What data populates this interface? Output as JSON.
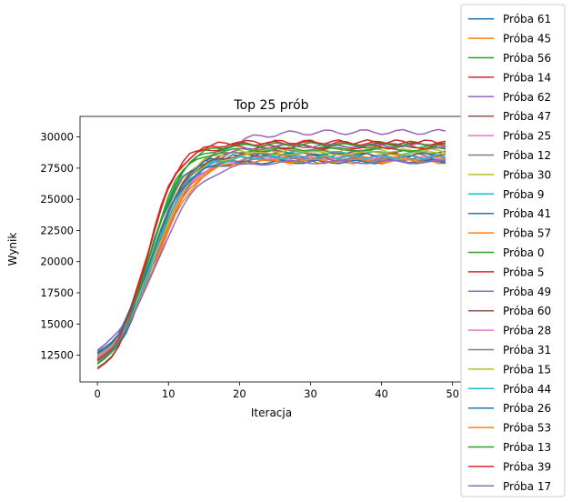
{
  "chart_data": {
    "type": "line",
    "title": "Top 25 prób",
    "xlabel": "Iteracja",
    "ylabel": "Wynik",
    "xlim": [
      -2.45,
      51.45
    ],
    "ylim": [
      10350,
      31650
    ],
    "xticks": [
      0,
      10,
      20,
      30,
      40,
      50
    ],
    "yticks": [
      12500,
      15000,
      17500,
      20000,
      22500,
      25000,
      27500,
      30000
    ],
    "grid": false,
    "legend_position": "right-outside",
    "series": [
      {
        "name": "Próba 61",
        "color": "#1f77b4",
        "start": 11800,
        "final": 28100,
        "k": 0.4,
        "x0": 7.5,
        "amp": 150,
        "freq": 1.1,
        "phase": 0.3
      },
      {
        "name": "Próba 45",
        "color": "#ff7f0e",
        "start": 12400,
        "final": 28000,
        "k": 0.38,
        "x0": 7.8,
        "amp": 150,
        "freq": 1.5,
        "phase": 1.2
      },
      {
        "name": "Próba 56",
        "color": "#2ca02c",
        "start": 12100,
        "final": 29300,
        "k": 0.42,
        "x0": 7.3,
        "amp": 180,
        "freq": 0.9,
        "phase": 2.0
      },
      {
        "name": "Próba 14",
        "color": "#d62728",
        "start": 12300,
        "final": 29500,
        "k": 0.45,
        "x0": 7.0,
        "amp": 160,
        "freq": 1.3,
        "phase": 0.7
      },
      {
        "name": "Próba 62",
        "color": "#9467bd",
        "start": 12800,
        "final": 30400,
        "k": 0.28,
        "x0": 8.5,
        "amp": 200,
        "freq": 1.2,
        "phase": 0.5
      },
      {
        "name": "Próba 47",
        "color": "#8c564b",
        "start": 12000,
        "final": 28800,
        "k": 0.4,
        "x0": 7.6,
        "amp": 140,
        "freq": 1.0,
        "phase": 1.8
      },
      {
        "name": "Próba 25",
        "color": "#e377c2",
        "start": 12500,
        "final": 28400,
        "k": 0.36,
        "x0": 7.9,
        "amp": 150,
        "freq": 1.4,
        "phase": 2.6
      },
      {
        "name": "Próba 12",
        "color": "#7f7f7f",
        "start": 12200,
        "final": 29000,
        "k": 0.39,
        "x0": 7.7,
        "amp": 130,
        "freq": 0.8,
        "phase": 0.9
      },
      {
        "name": "Próba 30",
        "color": "#bcbd22",
        "start": 11900,
        "final": 28900,
        "k": 0.41,
        "x0": 7.4,
        "amp": 150,
        "freq": 1.6,
        "phase": 1.5
      },
      {
        "name": "Próba 9",
        "color": "#17becf",
        "start": 12600,
        "final": 28700,
        "k": 0.37,
        "x0": 8.0,
        "amp": 140,
        "freq": 1.1,
        "phase": 2.3
      },
      {
        "name": "Próba 41",
        "color": "#1f77b4",
        "start": 12700,
        "final": 28500,
        "k": 0.43,
        "x0": 7.2,
        "amp": 200,
        "freq": 1.7,
        "phase": 0.1
      },
      {
        "name": "Próba 57",
        "color": "#ff7f0e",
        "start": 12300,
        "final": 28300,
        "k": 0.35,
        "x0": 8.2,
        "amp": 140,
        "freq": 1.2,
        "phase": 1.0
      },
      {
        "name": "Próba 0",
        "color": "#2ca02c",
        "start": 11500,
        "final": 29000,
        "k": 0.44,
        "x0": 7.1,
        "amp": 150,
        "freq": 0.9,
        "phase": 2.8
      },
      {
        "name": "Próba 5",
        "color": "#d62728",
        "start": 11400,
        "final": 29200,
        "k": 0.48,
        "x0": 6.8,
        "amp": 160,
        "freq": 1.3,
        "phase": 1.6
      },
      {
        "name": "Próba 49",
        "color": "#9467bd",
        "start": 12900,
        "final": 29300,
        "k": 0.32,
        "x0": 8.3,
        "amp": 150,
        "freq": 1.0,
        "phase": 0.4
      },
      {
        "name": "Próba 60",
        "color": "#8c564b",
        "start": 12100,
        "final": 28600,
        "k": 0.4,
        "x0": 7.5,
        "amp": 130,
        "freq": 1.5,
        "phase": 2.1
      },
      {
        "name": "Próba 28",
        "color": "#e377c2",
        "start": 12400,
        "final": 28300,
        "k": 0.38,
        "x0": 7.8,
        "amp": 150,
        "freq": 1.1,
        "phase": 0.8
      },
      {
        "name": "Próba 31",
        "color": "#7f7f7f",
        "start": 12000,
        "final": 28200,
        "k": 0.42,
        "x0": 7.4,
        "amp": 130,
        "freq": 1.4,
        "phase": 1.3
      },
      {
        "name": "Próba 15",
        "color": "#bcbd22",
        "start": 12500,
        "final": 28700,
        "k": 0.36,
        "x0": 7.9,
        "amp": 140,
        "freq": 0.8,
        "phase": 2.4
      },
      {
        "name": "Próba 44",
        "color": "#17becf",
        "start": 12200,
        "final": 28400,
        "k": 0.39,
        "x0": 7.6,
        "amp": 150,
        "freq": 1.6,
        "phase": 0.6
      },
      {
        "name": "Próba 26",
        "color": "#1f77b4",
        "start": 12600,
        "final": 28000,
        "k": 0.41,
        "x0": 7.3,
        "amp": 140,
        "freq": 1.2,
        "phase": 1.9
      },
      {
        "name": "Próba 53",
        "color": "#ff7f0e",
        "start": 12300,
        "final": 28100,
        "k": 0.37,
        "x0": 8.0,
        "amp": 130,
        "freq": 1.0,
        "phase": 2.7
      },
      {
        "name": "Próba 13",
        "color": "#2ca02c",
        "start": 11800,
        "final": 29400,
        "k": 0.43,
        "x0": 7.2,
        "amp": 150,
        "freq": 1.3,
        "phase": 0.2
      },
      {
        "name": "Próba 39",
        "color": "#d62728",
        "start": 12100,
        "final": 29600,
        "k": 0.46,
        "x0": 7.0,
        "amp": 170,
        "freq": 1.5,
        "phase": 1.1
      },
      {
        "name": "Próba 17",
        "color": "#9467bd",
        "start": 12200,
        "final": 28000,
        "k": 0.33,
        "x0": 8.1,
        "amp": 140,
        "freq": 0.9,
        "phase": 2.2
      }
    ]
  }
}
